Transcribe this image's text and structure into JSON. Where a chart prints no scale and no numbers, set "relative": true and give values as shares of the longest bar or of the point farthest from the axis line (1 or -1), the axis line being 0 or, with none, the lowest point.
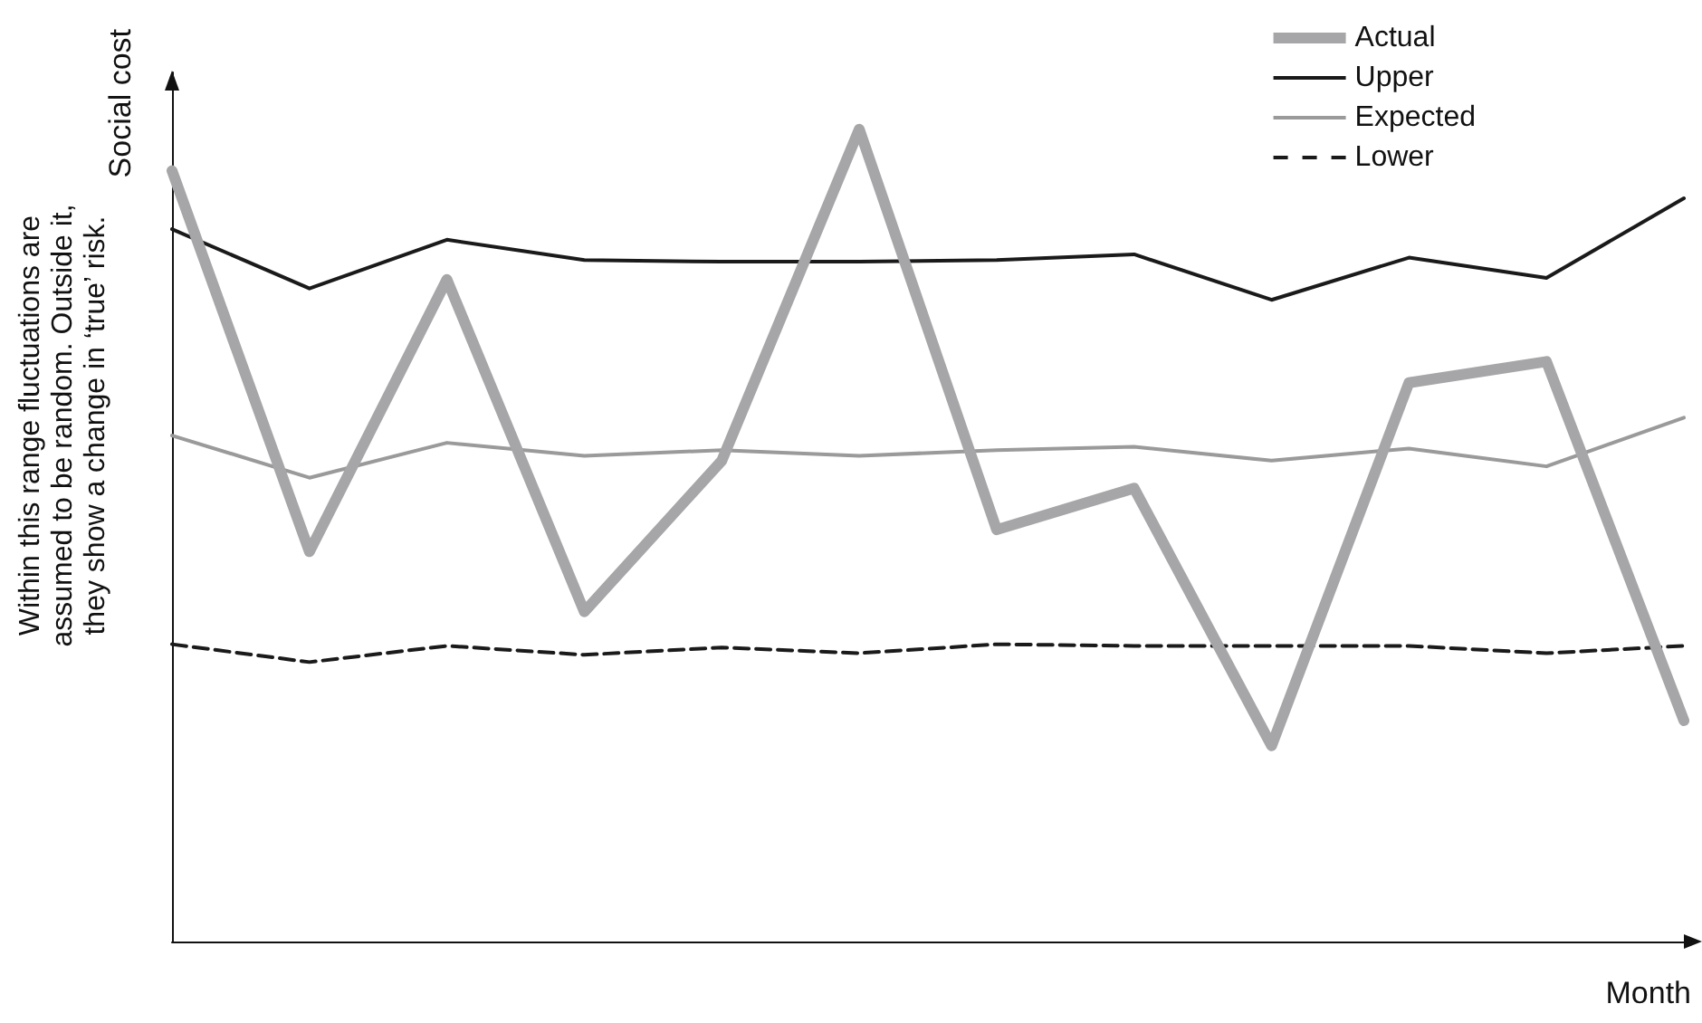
{
  "chart_data": {
    "type": "line",
    "relative": true,
    "xlabel": "Month",
    "ylabel": "Social cost",
    "annotations": [
      "Within this range fluctuations are\nassumed to be random. Outside it,\nthey show a change in ‘true’ risk."
    ],
    "categories": [
      null,
      null,
      null,
      null,
      null,
      null,
      null,
      null,
      null,
      null,
      null,
      null
    ],
    "series": [
      {
        "name": "Actual",
        "color": "#a6a6a8",
        "values": [
          0.949,
          0.48,
          0.815,
          0.406,
          0.592,
          1,
          0.507,
          0.558,
          0.241,
          0.688,
          0.714,
          0.272
        ]
      },
      {
        "name": "Upper",
        "color": "#1a1a1a",
        "values": [
          0.877,
          0.804,
          0.864,
          0.839,
          0.837,
          0.837,
          0.839,
          0.846,
          0.79,
          0.842,
          0.817,
          0.915
        ]
      },
      {
        "name": "Expected",
        "color": "#9a9a9a",
        "values": [
          0.623,
          0.571,
          0.614,
          0.598,
          0.605,
          0.598,
          0.605,
          0.609,
          0.592,
          0.607,
          0.585,
          0.645
        ]
      },
      {
        "name": "Lower",
        "color": "#1a1a1a",
        "line_style": "dashed",
        "values": [
          0.366,
          0.344,
          0.364,
          0.353,
          0.362,
          0.355,
          0.366,
          0.364,
          0.364,
          0.364,
          0.355,
          0.364
        ]
      }
    ],
    "legend": "top right",
    "grid": false,
    "marker": "none"
  }
}
